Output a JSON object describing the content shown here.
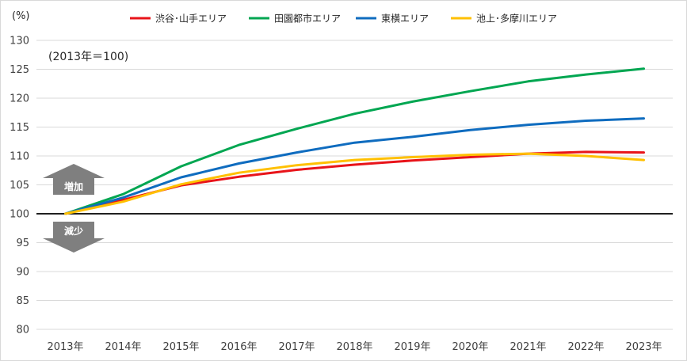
{
  "chart_data": {
    "type": "line",
    "title": "",
    "xlabel": "",
    "ylabel": "",
    "y_unit_label": "(%)",
    "base_note": "(2013年＝100)",
    "categories": [
      "2013年",
      "2014年",
      "2015年",
      "2016年",
      "2017年",
      "2018年",
      "2019年",
      "2020年",
      "2021年",
      "2022年",
      "2023年"
    ],
    "ylim": [
      80,
      130
    ],
    "yticks": [
      80,
      85,
      90,
      95,
      100,
      105,
      110,
      115,
      120,
      125,
      130
    ],
    "ytick_labels": [
      "80",
      "85",
      "90",
      "95",
      "100",
      "105",
      "110",
      "115",
      "120",
      "125",
      "130"
    ],
    "baseline": 100,
    "grid": true,
    "legend_position": "top",
    "series": [
      {
        "name": "渋谷･山手エリア",
        "color": "#e8141a",
        "values": [
          100,
          102.4,
          104.9,
          106.4,
          107.6,
          108.5,
          109.2,
          109.8,
          110.4,
          110.7,
          110.6
        ]
      },
      {
        "name": "田園都市エリア",
        "color": "#00a651",
        "values": [
          100,
          103.4,
          108.2,
          111.9,
          114.7,
          117.3,
          119.4,
          121.2,
          122.9,
          124.1,
          125.1
        ]
      },
      {
        "name": "東横エリア",
        "color": "#0f6cbf",
        "values": [
          100,
          102.8,
          106.3,
          108.7,
          110.6,
          112.3,
          113.3,
          114.5,
          115.4,
          116.1,
          116.5
        ]
      },
      {
        "name": "池上･多摩川エリア",
        "color": "#ffc000",
        "values": [
          100,
          102.1,
          105.1,
          107.1,
          108.4,
          109.3,
          109.8,
          110.2,
          110.4,
          110.0,
          109.3
        ]
      }
    ],
    "annotations": {
      "up_label": "増加",
      "down_label": "減少",
      "arrow_color": "#7f7f7f"
    }
  }
}
